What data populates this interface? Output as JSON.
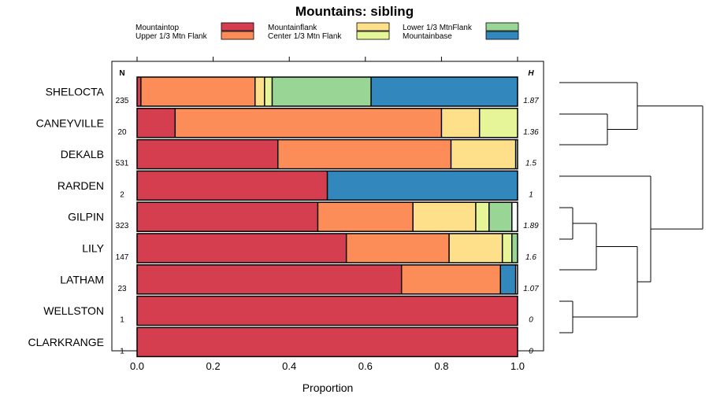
{
  "chart_data": {
    "type": "bar",
    "orientation": "horizontal",
    "stacked": true,
    "title": "Mountains: sibling",
    "xlabel": "Proportion",
    "ylabel": "",
    "xlim": [
      0,
      1
    ],
    "x_ticks": [
      0.0,
      0.2,
      0.4,
      0.6,
      0.8,
      1.0
    ],
    "x_tick_labels": [
      "0.0",
      "0.2",
      "0.4",
      "0.6",
      "0.8",
      "1.0"
    ],
    "n_header": "N",
    "h_header": "H",
    "categories": [
      "SHELOCTA",
      "CANEYVILLE",
      "DEKALB",
      "RARDEN",
      "GILPIN",
      "LILY",
      "LATHAM",
      "WELLSTON",
      "CLARKRANGE"
    ],
    "n_values": [
      "235",
      "20",
      "531",
      "2",
      "323",
      "147",
      "23",
      "1",
      "1"
    ],
    "h_values": [
      "1.87",
      "1.36",
      "1.5",
      "1",
      "1.89",
      "1.6",
      "1.07",
      "0",
      "0"
    ],
    "series": [
      {
        "name": "Mountaintop",
        "color": "#D53E4F",
        "values": [
          0.01,
          0.1,
          0.37,
          0.5,
          0.475,
          0.55,
          0.695,
          1.0,
          1.0
        ]
      },
      {
        "name": "Upper 1/3 Mtn Flank",
        "color": "#FC8D59",
        "values": [
          0.3,
          0.7,
          0.455,
          0.0,
          0.25,
          0.27,
          0.26,
          0.0,
          0.0
        ]
      },
      {
        "name": "Mountainflank",
        "color": "#FEE08B",
        "values": [
          0.025,
          0.1,
          0.17,
          0.0,
          0.165,
          0.14,
          0.0,
          0.0,
          0.0
        ]
      },
      {
        "name": "Center 1/3 Mtn Flank",
        "color": "#E6F598",
        "values": [
          0.02,
          0.1,
          0.005,
          0.0,
          0.035,
          0.025,
          0.0,
          0.0,
          0.0
        ]
      },
      {
        "name": "Lower 1/3 MtnFlank",
        "color": "#99D594",
        "values": [
          0.26,
          0.0,
          0.0,
          0.0,
          0.06,
          0.015,
          0.0,
          0.0,
          0.0
        ]
      },
      {
        "name": "Mountainbase",
        "color": "#3288BD",
        "values": [
          0.385,
          0.0,
          0.0,
          0.5,
          0.0,
          0.0,
          0.04,
          0.0,
          0.0
        ]
      }
    ],
    "legend_order": [
      "Mountaintop",
      "Mountainflank",
      "Lower 1/3 MtnFlank",
      "Upper 1/3 Mtn Flank",
      "Center 1/3 Mtn Flank",
      "Mountainbase"
    ],
    "legend_position": "top",
    "dendrogram": {
      "side": "right",
      "merges": [
        {
          "a": "CANEYVILLE",
          "b": "DEKALB",
          "height": 0.22
        },
        {
          "a": "SHELOCTA",
          "b": "CANEYVILLE+DEKALB",
          "height": 0.49
        },
        {
          "a": "GILPIN",
          "b": "LILY",
          "height": 0.08
        },
        {
          "a": "GILPIN+LILY",
          "b": "LATHAM",
          "height": 0.18
        },
        {
          "a": "WELLSTON",
          "b": "CLARKRANGE",
          "height": 0.08
        },
        {
          "a": "GILPIN+LILY+LATHAM",
          "b": "WELLSTON+CLARKRANGE",
          "height": 0.48
        },
        {
          "a": "RARDEN",
          "b": "GILPIN+LILY+LATHAM+WELLSTON+CLARKRANGE",
          "height": 0.57
        },
        {
          "a": "SHELOCTA+CANEYVILLE+DEKALB",
          "b": "RARDEN+...",
          "height": 1.0
        }
      ]
    }
  }
}
